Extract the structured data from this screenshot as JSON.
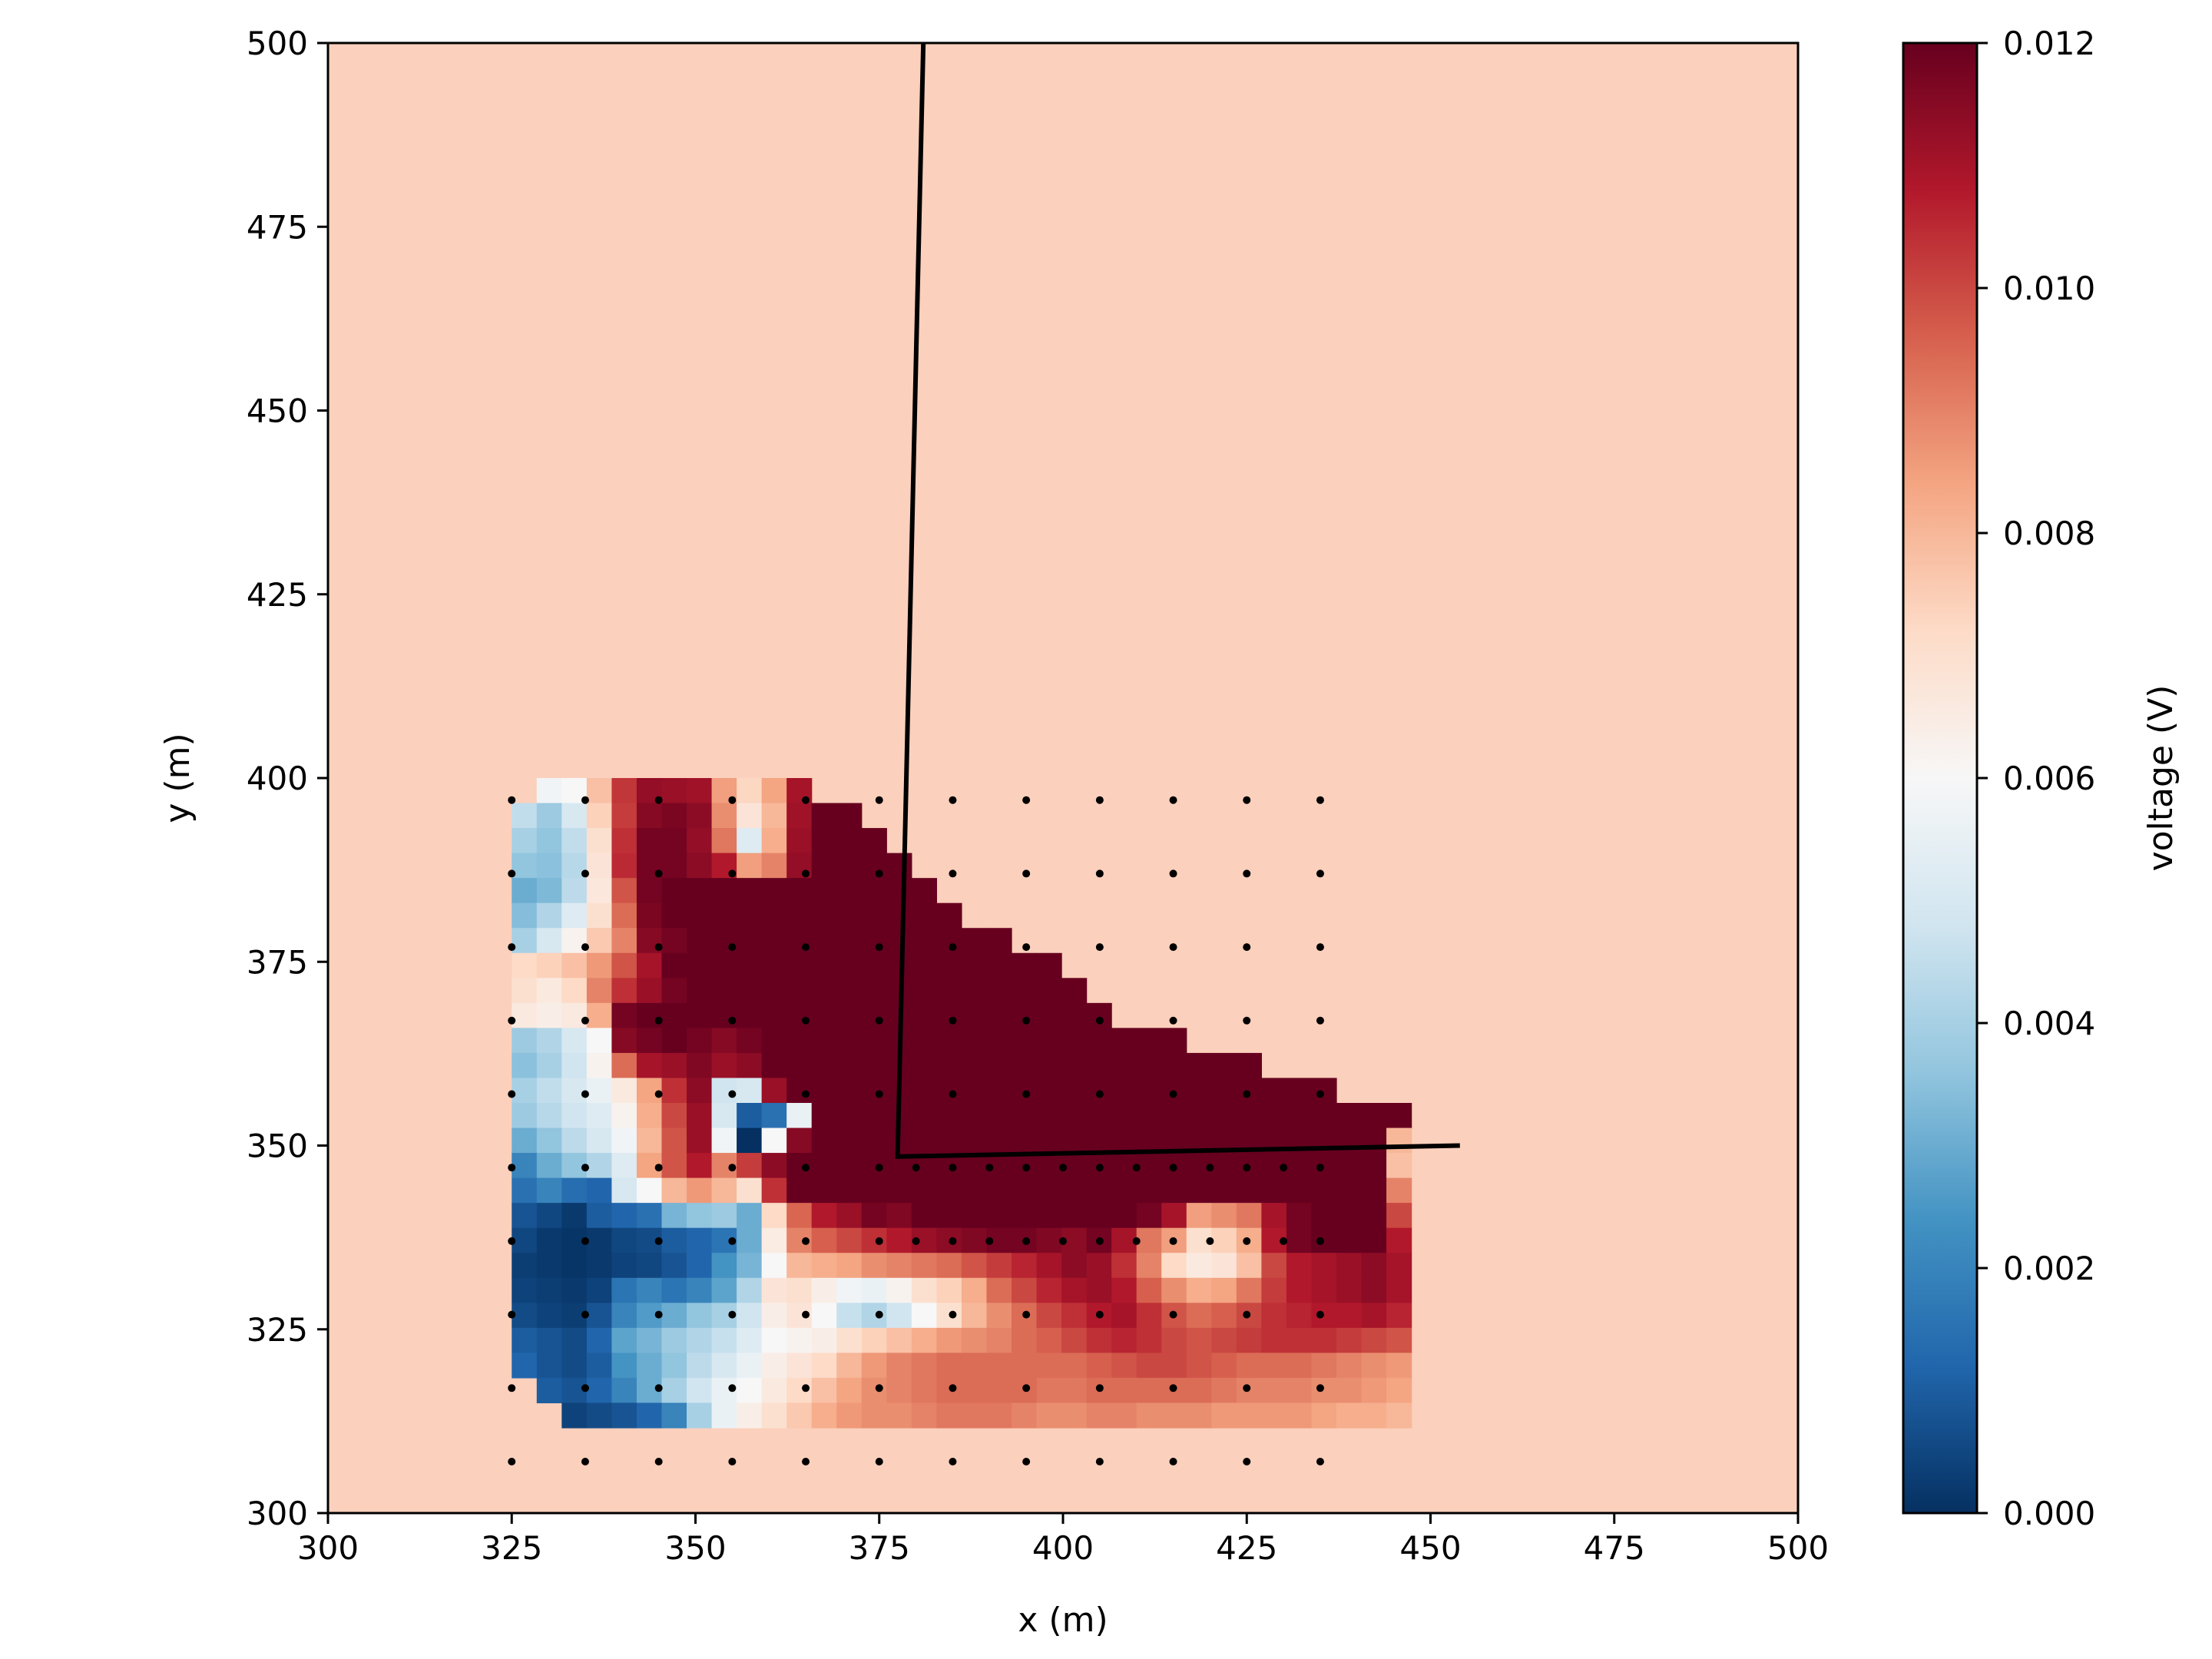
{
  "chart_data": {
    "type": "heatmap",
    "title": "",
    "xlabel": "x (m)",
    "ylabel": "y (m)",
    "xlim": [
      300,
      500
    ],
    "ylim": [
      300,
      500
    ],
    "x_ticks": [
      300,
      325,
      350,
      375,
      400,
      425,
      450,
      475,
      500
    ],
    "y_ticks": [
      300,
      325,
      350,
      375,
      400,
      425,
      450,
      475,
      500
    ],
    "grid": false,
    "colormap": "RdBu_r",
    "background_value": 0.0075,
    "background_color": "#fbd0bc",
    "colorbar": {
      "label": "voltage (V)",
      "range": [
        0.0,
        0.012
      ],
      "ticks": [
        "0.000",
        "0.002",
        "0.004",
        "0.006",
        "0.008",
        "0.010",
        "0.012"
      ]
    },
    "cells": {
      "x0": 325,
      "dx": 3.4,
      "y_top": 400,
      "dy": 3.4,
      "rows": [
        [
          null,
          0.0058,
          0.006,
          0.0078,
          0.0103,
          0.0113,
          0.0112,
          0.0111,
          0.0085,
          0.0073,
          0.0084,
          0.011,
          null,
          null,
          null,
          null,
          null,
          null,
          null,
          null,
          null,
          null,
          null,
          null,
          null,
          null,
          null,
          null,
          null,
          null,
          null,
          null,
          null,
          null,
          null,
          null
        ],
        [
          0.0045,
          0.0038,
          0.005,
          0.0074,
          0.0102,
          0.0115,
          0.0117,
          0.0114,
          0.0088,
          0.0068,
          0.008,
          0.0111,
          0.012,
          0.012,
          null,
          null,
          null,
          null,
          null,
          null,
          null,
          null,
          null,
          null,
          null,
          null,
          null,
          null,
          null,
          null,
          null,
          null,
          null,
          null,
          null,
          null
        ],
        [
          0.004,
          0.0036,
          0.0045,
          0.007,
          0.0104,
          0.0118,
          0.0118,
          0.0113,
          0.0092,
          0.0052,
          0.0082,
          0.0112,
          0.012,
          0.012,
          0.012,
          null,
          null,
          null,
          null,
          null,
          null,
          null,
          null,
          null,
          null,
          null,
          null,
          null,
          null,
          null,
          null,
          null,
          null,
          null,
          null,
          null
        ],
        [
          0.0036,
          0.0035,
          0.0043,
          0.0068,
          0.0105,
          0.0118,
          0.0118,
          0.0114,
          0.0108,
          0.0085,
          0.009,
          0.0113,
          0.012,
          0.012,
          0.012,
          0.012,
          null,
          null,
          null,
          null,
          null,
          null,
          null,
          null,
          null,
          null,
          null,
          null,
          null,
          null,
          null,
          null,
          null,
          null,
          null,
          null
        ],
        [
          0.003,
          0.0033,
          0.0044,
          0.0067,
          0.0098,
          0.0118,
          0.012,
          0.012,
          0.012,
          0.012,
          0.012,
          0.012,
          0.012,
          0.012,
          0.012,
          0.012,
          0.012,
          null,
          null,
          null,
          null,
          null,
          null,
          null,
          null,
          null,
          null,
          null,
          null,
          null,
          null,
          null,
          null,
          null,
          null,
          null
        ],
        [
          0.0034,
          0.0042,
          0.0052,
          0.007,
          0.0094,
          0.0117,
          0.012,
          0.012,
          0.012,
          0.012,
          0.012,
          0.012,
          0.012,
          0.012,
          0.012,
          0.012,
          0.012,
          0.012,
          null,
          null,
          null,
          null,
          null,
          null,
          null,
          null,
          null,
          null,
          null,
          null,
          null,
          null,
          null,
          null,
          null,
          null
        ],
        [
          0.004,
          0.005,
          0.0062,
          0.0076,
          0.009,
          0.0115,
          0.0118,
          0.012,
          0.012,
          0.012,
          0.012,
          0.012,
          0.012,
          0.012,
          0.012,
          0.012,
          0.012,
          0.012,
          0.012,
          0.012,
          null,
          null,
          null,
          null,
          null,
          null,
          null,
          null,
          null,
          null,
          null,
          null,
          null,
          null,
          null,
          null
        ],
        [
          0.0072,
          0.0074,
          0.0078,
          0.0086,
          0.0098,
          0.011,
          0.012,
          0.012,
          0.012,
          0.012,
          0.012,
          0.012,
          0.012,
          0.012,
          0.012,
          0.012,
          0.012,
          0.012,
          0.012,
          0.012,
          0.012,
          0.012,
          null,
          null,
          null,
          null,
          null,
          null,
          null,
          null,
          null,
          null,
          null,
          null,
          null,
          null
        ],
        [
          0.007,
          0.0066,
          0.0072,
          0.009,
          0.0104,
          0.0112,
          0.0118,
          0.012,
          0.012,
          0.012,
          0.012,
          0.012,
          0.012,
          0.012,
          0.012,
          0.012,
          0.012,
          0.012,
          0.012,
          0.012,
          0.012,
          0.012,
          0.012,
          null,
          null,
          null,
          null,
          null,
          null,
          null,
          null,
          null,
          null,
          null,
          null,
          null
        ],
        [
          0.0066,
          0.0064,
          0.0066,
          0.0082,
          0.0118,
          0.012,
          0.012,
          0.012,
          0.012,
          0.012,
          0.012,
          0.012,
          0.012,
          0.012,
          0.012,
          0.012,
          0.012,
          0.012,
          0.012,
          0.012,
          0.012,
          0.012,
          0.012,
          0.012,
          null,
          null,
          null,
          null,
          null,
          null,
          null,
          null,
          null,
          null,
          null,
          null
        ],
        [
          0.0038,
          0.0042,
          0.005,
          0.006,
          0.0115,
          0.0118,
          0.012,
          0.0118,
          0.0115,
          0.0118,
          0.012,
          0.012,
          0.012,
          0.012,
          0.012,
          0.012,
          0.012,
          0.012,
          0.012,
          0.012,
          0.012,
          0.012,
          0.012,
          0.012,
          0.012,
          0.012,
          0.012,
          null,
          null,
          null,
          null,
          null,
          null,
          null,
          null,
          null
        ],
        [
          0.0035,
          0.004,
          0.0048,
          0.0062,
          0.0094,
          0.011,
          0.0112,
          0.0116,
          0.0112,
          0.0114,
          0.012,
          0.012,
          0.012,
          0.012,
          0.012,
          0.012,
          0.012,
          0.012,
          0.012,
          0.012,
          0.012,
          0.012,
          0.012,
          0.012,
          0.012,
          0.012,
          0.012,
          0.012,
          0.012,
          0.012,
          null,
          null,
          null,
          null,
          null,
          null
        ],
        [
          0.004,
          0.0045,
          0.005,
          0.0056,
          0.0066,
          0.0084,
          0.0104,
          0.0114,
          0.0048,
          0.005,
          0.0112,
          0.012,
          0.012,
          0.012,
          0.012,
          0.012,
          0.012,
          0.012,
          0.012,
          0.012,
          0.012,
          0.012,
          0.012,
          0.012,
          0.012,
          0.012,
          0.012,
          0.012,
          0.012,
          0.012,
          0.012,
          0.012,
          0.012,
          null,
          null,
          null
        ],
        [
          0.0038,
          0.0043,
          0.0048,
          0.0052,
          0.0062,
          0.0082,
          0.01,
          0.0112,
          0.005,
          0.001,
          0.0015,
          0.0056,
          0.012,
          0.012,
          0.012,
          0.012,
          0.012,
          0.012,
          0.012,
          0.012,
          0.012,
          0.012,
          0.012,
          0.012,
          0.012,
          0.012,
          0.012,
          0.012,
          0.012,
          0.012,
          0.012,
          0.012,
          0.012,
          0.012,
          0.012,
          0.012
        ],
        [
          0.003,
          0.0036,
          0.0044,
          0.005,
          0.0058,
          0.008,
          0.0098,
          0.0112,
          0.0058,
          0.0,
          0.006,
          0.0115,
          0.012,
          0.012,
          0.012,
          0.012,
          0.012,
          0.012,
          0.012,
          0.012,
          0.012,
          0.012,
          0.012,
          0.012,
          0.012,
          0.012,
          0.012,
          0.012,
          0.012,
          0.012,
          0.012,
          0.012,
          0.012,
          0.012,
          0.012,
          0.008
        ],
        [
          0.002,
          0.003,
          0.0036,
          0.0042,
          0.0052,
          0.0084,
          0.0098,
          0.0108,
          0.009,
          0.0102,
          0.0114,
          0.012,
          0.012,
          0.012,
          0.012,
          0.012,
          0.012,
          0.012,
          0.012,
          0.012,
          0.012,
          0.012,
          0.012,
          0.012,
          0.012,
          0.012,
          0.012,
          0.012,
          0.012,
          0.012,
          0.012,
          0.012,
          0.012,
          0.012,
          0.012,
          0.0078
        ],
        [
          0.0015,
          0.002,
          0.0014,
          0.0012,
          0.005,
          0.006,
          0.008,
          0.0086,
          0.008,
          0.007,
          0.0104,
          0.012,
          0.012,
          0.012,
          0.012,
          0.012,
          0.012,
          0.012,
          0.012,
          0.012,
          0.012,
          0.012,
          0.012,
          0.012,
          0.012,
          0.012,
          0.012,
          0.012,
          0.012,
          0.012,
          0.012,
          0.012,
          0.012,
          0.012,
          0.012,
          0.009
        ],
        [
          0.0008,
          0.0005,
          0.0002,
          0.001,
          0.0012,
          0.0015,
          0.0032,
          0.0036,
          0.0038,
          0.003,
          0.0072,
          0.0095,
          0.0108,
          0.0112,
          0.0118,
          0.0116,
          0.012,
          0.012,
          0.012,
          0.012,
          0.012,
          0.012,
          0.012,
          0.012,
          0.012,
          0.0118,
          0.011,
          0.0085,
          0.0088,
          0.0092,
          0.011,
          0.0118,
          0.012,
          0.012,
          0.012,
          0.01
        ],
        [
          0.0005,
          0.0002,
          0.0001,
          0.0002,
          0.0005,
          0.0006,
          0.001,
          0.0012,
          0.0016,
          0.003,
          0.0065,
          0.009,
          0.0096,
          0.01,
          0.0104,
          0.0108,
          0.0112,
          0.0114,
          0.0116,
          0.0118,
          0.0118,
          0.0116,
          0.0114,
          0.0118,
          0.011,
          0.0092,
          0.0085,
          0.007,
          0.0074,
          0.0082,
          0.0108,
          0.0118,
          0.012,
          0.012,
          0.012,
          0.0108
        ],
        [
          0.0003,
          0.0002,
          0.0001,
          0.0002,
          0.0004,
          0.0005,
          0.0008,
          0.0012,
          0.0024,
          0.0032,
          0.006,
          0.008,
          0.0082,
          0.0084,
          0.0088,
          0.009,
          0.0092,
          0.0094,
          0.0098,
          0.0102,
          0.0106,
          0.011,
          0.0114,
          0.0112,
          0.0104,
          0.009,
          0.0072,
          0.0066,
          0.0068,
          0.0078,
          0.01,
          0.0108,
          0.011,
          0.0112,
          0.0114,
          0.011
        ],
        [
          0.0004,
          0.0003,
          0.0002,
          0.0004,
          0.0016,
          0.002,
          0.0016,
          0.002,
          0.0028,
          0.0042,
          0.0068,
          0.007,
          0.0064,
          0.0058,
          0.0056,
          0.0062,
          0.007,
          0.0074,
          0.0082,
          0.0094,
          0.01,
          0.0106,
          0.011,
          0.0112,
          0.0108,
          0.0096,
          0.0088,
          0.0082,
          0.0084,
          0.0092,
          0.0102,
          0.0108,
          0.011,
          0.0112,
          0.0114,
          0.011
        ],
        [
          0.0006,
          0.0004,
          0.0003,
          0.0008,
          0.002,
          0.0026,
          0.003,
          0.0036,
          0.004,
          0.0048,
          0.0064,
          0.0068,
          0.006,
          0.0046,
          0.0042,
          0.0048,
          0.006,
          0.007,
          0.008,
          0.0088,
          0.0094,
          0.01,
          0.0104,
          0.0108,
          0.011,
          0.0104,
          0.0098,
          0.0094,
          0.0096,
          0.01,
          0.0104,
          0.0106,
          0.0108,
          0.0108,
          0.011,
          0.0106
        ],
        [
          0.001,
          0.0008,
          0.0006,
          0.0012,
          0.0028,
          0.0032,
          0.0038,
          0.0042,
          0.0046,
          0.0052,
          0.006,
          0.0062,
          0.0064,
          0.007,
          0.0074,
          0.0078,
          0.0082,
          0.0086,
          0.0088,
          0.009,
          0.0094,
          0.0096,
          0.01,
          0.0104,
          0.0106,
          0.0104,
          0.01,
          0.0098,
          0.01,
          0.0102,
          0.0104,
          0.0104,
          0.0104,
          0.0102,
          0.01,
          0.0098
        ],
        [
          0.0012,
          0.0008,
          0.0006,
          0.001,
          0.0024,
          0.003,
          0.0036,
          0.0044,
          0.005,
          0.0056,
          0.0064,
          0.0068,
          0.0072,
          0.008,
          0.0086,
          0.009,
          0.0092,
          0.0094,
          0.0094,
          0.0094,
          0.0094,
          0.0094,
          0.0094,
          0.0096,
          0.0098,
          0.01,
          0.01,
          0.0098,
          0.0096,
          0.0094,
          0.0094,
          0.0094,
          0.0092,
          0.009,
          0.0088,
          0.0086
        ],
        [
          null,
          0.001,
          0.0008,
          0.0012,
          0.002,
          0.003,
          0.004,
          0.0048,
          0.0056,
          0.006,
          0.0066,
          0.0072,
          0.0078,
          0.0084,
          0.0088,
          0.009,
          0.0092,
          0.0094,
          0.0094,
          0.0094,
          0.0094,
          0.0092,
          0.0092,
          0.0094,
          0.0094,
          0.0094,
          0.0094,
          0.0094,
          0.0092,
          0.009,
          0.009,
          0.009,
          0.0088,
          0.0088,
          0.0086,
          0.0084
        ],
        [
          null,
          null,
          0.0004,
          0.0006,
          0.0008,
          0.0012,
          0.002,
          0.004,
          0.0056,
          0.0064,
          0.007,
          0.0076,
          0.0082,
          0.0086,
          0.0088,
          0.0088,
          0.009,
          0.0092,
          0.0092,
          0.0092,
          0.009,
          0.0088,
          0.0088,
          0.009,
          0.009,
          0.0088,
          0.0088,
          0.0088,
          0.0086,
          0.0086,
          0.0086,
          0.0086,
          0.0084,
          0.0082,
          0.0082,
          0.008
        ]
      ]
    },
    "electrodes": {
      "x": [
        325,
        335,
        345,
        355,
        365,
        375,
        385,
        395,
        405,
        415,
        425,
        435
      ],
      "y": [
        307,
        317,
        327,
        337,
        347,
        357,
        367,
        377,
        387,
        397
      ],
      "extra_points": [
        {
          "x": 380,
          "y": 347
        },
        {
          "x": 390,
          "y": 347
        },
        {
          "x": 400,
          "y": 347
        },
        {
          "x": 410,
          "y": 347
        },
        {
          "x": 420,
          "y": 347
        },
        {
          "x": 430,
          "y": 347
        },
        {
          "x": 380,
          "y": 337
        },
        {
          "x": 390,
          "y": 337
        },
        {
          "x": 400,
          "y": 337
        },
        {
          "x": 410,
          "y": 337
        },
        {
          "x": 420,
          "y": 337
        },
        {
          "x": 430,
          "y": 337
        }
      ]
    },
    "annotation_line": {
      "x": [
        381,
        377.5,
        454
      ],
      "y": [
        500,
        348.5,
        350
      ]
    }
  }
}
